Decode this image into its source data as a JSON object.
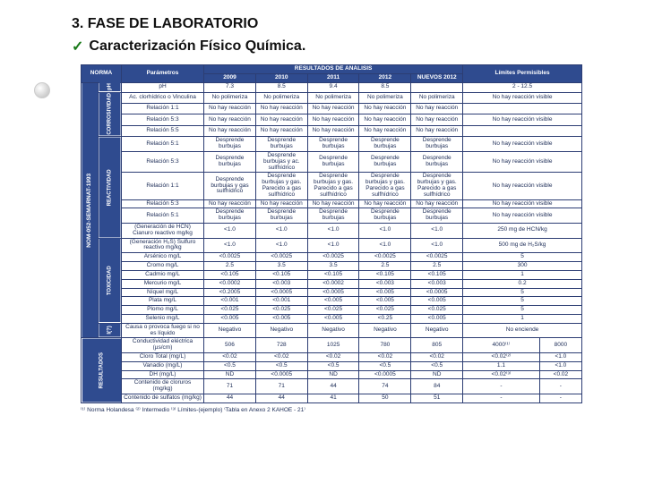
{
  "heading": "3. FASE DE LABORATORIO",
  "subheading": "Caracterización Físico Química.",
  "checkmark": "✓",
  "colors": {
    "header_bg": "#2f4b8f",
    "border": "#2c3d73",
    "text": "#1a2a55",
    "page_bg": "#ffffff"
  },
  "table": {
    "top_headers": {
      "norma": "NORMA",
      "param": "Parámetros",
      "results": "RESULTADOS DE ANÁLISIS",
      "limits": "Límites Permisibles"
    },
    "year_headers": [
      "2009",
      "2010",
      "2011",
      "2012",
      "NUEVOS 2012"
    ],
    "side_label": "NOM-052-SEMARNAT-1993",
    "groups": [
      {
        "label": "pH",
        "rows": [
          {
            "param": "pH",
            "vals": [
              "7.3",
              "8.5",
              "9.4",
              "8.5",
              ""
            ],
            "lim": "2 - 12.5"
          }
        ]
      },
      {
        "label": "CORROSIVIDAD",
        "rows": [
          {
            "param": "Ac. clorhídrico o Vinculina",
            "vals": [
              "No polimeriza",
              "No polimeriza",
              "No polimeriza",
              "No polimeriza",
              "No polimeriza"
            ],
            "lim": "No hay reacción visible"
          },
          {
            "param": "Relación 1:1",
            "vals": [
              "No hay reacción",
              "No hay reacción",
              "No hay reacción",
              "No hay reacción",
              "No hay reacción"
            ],
            "lim": ""
          },
          {
            "param": "Relación 5:3",
            "vals": [
              "No hay reacción",
              "No hay reacción",
              "No hay reacción",
              "No hay reacción",
              "No hay reacción"
            ],
            "lim": "No hay reacción visible"
          },
          {
            "param": "Relación 5:5",
            "vals": [
              "No hay reacción",
              "No hay reacción",
              "No hay reacción",
              "No hay reacción",
              "No hay reacción"
            ],
            "lim": ""
          }
        ]
      },
      {
        "label": "REACTIVIDAD",
        "rows": [
          {
            "param": "Relación 5:1",
            "vals": [
              "Desprende burbujas",
              "Desprende burbujas",
              "Desprende burbujas",
              "Desprende burbujas",
              "Desprende burbujas"
            ],
            "lim": "No hay reacción visible"
          },
          {
            "param": "Relación 5:3",
            "vals": [
              "Desprende burbujas",
              "Desprende burbujas y ac. sulfhídrico",
              "Desprende burbujas",
              "Desprende burbujas",
              "Desprende burbujas"
            ],
            "lim": "No hay reacción visible"
          },
          {
            "param": "Relación 1:1",
            "vals": [
              "Desprende burbujas y gas sulfhídrico",
              "Desprende burbujas y gas. Parecido a gas sulfhídrico",
              "Desprende burbujas y gas. Parecido a gas sulfhídrico",
              "Desprende burbujas y gas. Parecido a gas sulfhídrico",
              "Desprende burbujas y gas. Parecido a gas sulfhídrico"
            ],
            "lim": "No hay reacción visible"
          },
          {
            "param": "Relación 5:3",
            "vals": [
              "No hay reacción",
              "No hay reacción",
              "No hay reacción",
              "No hay reacción",
              "No hay reacción"
            ],
            "lim": "No hay reacción visible"
          },
          {
            "param": "Relación 5:1",
            "vals": [
              "Desprende burbujas",
              "Desprende burbujas",
              "Desprende burbujas",
              "Desprende burbujas",
              "Desprende burbujas"
            ],
            "lim": "No hay reacción visible"
          },
          {
            "param": "(Generación de HCN) Cianuro reactivo mg/kg",
            "vals": [
              "<1.0",
              "<1.0",
              "<1.0",
              "<1.0",
              "<1.0"
            ],
            "lim": "250 mg de HCN/kg"
          }
        ]
      },
      {
        "label": "TOXICIDAD",
        "rows": [
          {
            "param": "(Generación H₂S) Sulfuro reactivo mg/kg",
            "vals": [
              "<1.0",
              "<1.0",
              "<1.0",
              "<1.0",
              "<1.0"
            ],
            "lim": "500 mg de H₂S/kg"
          },
          {
            "param": "Arsénico mg/L",
            "vals": [
              "<0.0025",
              "<0.0025",
              "<0.0025",
              "<0.0025",
              "<0.0025"
            ],
            "lim": "5"
          },
          {
            "param": "Cromo mg/L",
            "vals": [
              "2.5",
              "3.5",
              "3.5",
              "2.5",
              "2.5"
            ],
            "lim": "300"
          },
          {
            "param": "Cadmio mg/L",
            "vals": [
              "<0.105",
              "<0.105",
              "<0.105",
              "<0.105",
              "<0.105"
            ],
            "lim": "1"
          },
          {
            "param": "Mercurio mg/L",
            "vals": [
              "<0.0002",
              "<0.003",
              "<0.0002",
              "<0.003",
              "<0.003"
            ],
            "lim": "0.2"
          },
          {
            "param": "Níquel mg/L",
            "vals": [
              "<0.2005",
              "<0.0005",
              "<0.0005",
              "<0.005",
              "<0.0005"
            ],
            "lim": "5"
          },
          {
            "param": "Plata mg/L",
            "vals": [
              "<0.001",
              "<0.001",
              "<0.005",
              "<0.005",
              "<0.005"
            ],
            "lim": "5"
          },
          {
            "param": "Plomo mg/L",
            "vals": [
              "<0.025",
              "<0.025",
              "<0.025",
              "<0.025",
              "<0.025"
            ],
            "lim": "5"
          },
          {
            "param": "Selenio mg/L",
            "vals": [
              "<0.005",
              "<0.005",
              "<0.005",
              "<0.25",
              "<0.005"
            ],
            "lim": "1"
          }
        ]
      },
      {
        "label": "I(?)",
        "rows": [
          {
            "param": "Causa o provoca fuego si no es líquido",
            "vals": [
              "Negativo",
              "Negativo",
              "Negativo",
              "Negativo",
              "Negativo"
            ],
            "lim": "No enciende"
          }
        ]
      }
    ],
    "extras": {
      "label": "RESULTADOS",
      "limits_headers": [
        "",
        ""
      ],
      "rows": [
        {
          "param": "Conductividad eléctrica (µs/cm)",
          "vals": [
            "506",
            "728",
            "1025",
            "780",
            "805"
          ],
          "lim1": "4000⁽¹⁾",
          "lim2": "8000"
        },
        {
          "param": "Cloro Total (mg/L)",
          "vals": [
            "<0.02",
            "<0.02",
            "<0.02",
            "<0.02",
            "<0.02"
          ],
          "lim1": "<0.02⁽²⁾",
          "lim2": "<1.0"
        },
        {
          "param": "Vanadio (mg/L)",
          "vals": [
            "<0.5",
            "<0.5",
            "<0.5",
            "<0.5",
            "<0.5"
          ],
          "lim1": "1.1",
          "lim2": "<1.0"
        },
        {
          "param": "DH (mg/L)",
          "vals": [
            "ND",
            "<0.0005",
            "ND",
            "<0.0005",
            "ND"
          ],
          "lim1": "<0.02⁽³⁾",
          "lim2": "<0.02"
        },
        {
          "param": "Contenido de cloruros (mg/kg)",
          "vals": [
            "71",
            "71",
            "44",
            "74",
            "84"
          ],
          "lim1": "-",
          "lim2": "-"
        },
        {
          "param": "Contenido de sulfatos (mg/kg)",
          "vals": [
            "44",
            "44",
            "41",
            "50",
            "51"
          ],
          "lim1": "-",
          "lim2": "-"
        }
      ]
    },
    "footnote": "⁽¹⁾ Norma Holandesa ⁽²⁾ Intermedio ⁽³⁾ Límites-(ejemplo) ⁽Tabla en Anexo 2 KAHOE - 21⁾"
  }
}
